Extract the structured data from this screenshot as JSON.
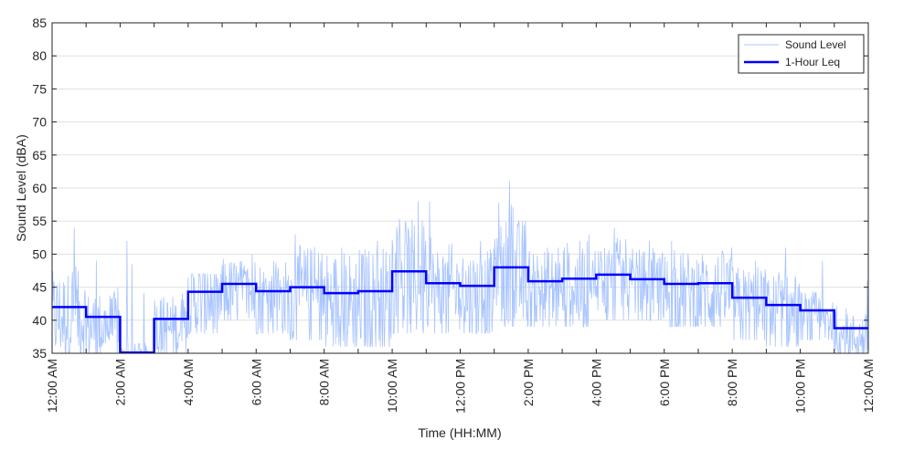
{
  "chart_data": {
    "type": "line",
    "title": "",
    "xlabel": "Time (HH:MM)",
    "ylabel": "Sound Level (dBA)",
    "ylim": [
      35,
      85
    ],
    "xlim_hours": [
      0,
      24
    ],
    "yticks": [
      35,
      40,
      45,
      50,
      55,
      60,
      65,
      70,
      75,
      80,
      85
    ],
    "xtick_labels": [
      "12:00 AM",
      "2:00 AM",
      "4:00 AM",
      "6:00 AM",
      "8:00 AM",
      "10:00 AM",
      "12:00 PM",
      "2:00 PM",
      "4:00 PM",
      "6:00 PM",
      "8:00 PM",
      "10:00 PM",
      "12:00 AM"
    ],
    "grid": "horizontal",
    "legend_position": "top-right",
    "series": [
      {
        "name": "Sound Level",
        "color": "#a8c4ff",
        "hourly_peak": [
          54,
          49,
          52,
          44,
          47,
          50,
          49,
          53,
          51,
          52,
          58,
          58,
          52,
          61,
          51,
          53,
          54,
          52,
          52,
          51,
          49,
          51,
          49,
          46
        ],
        "hourly_floor": [
          35,
          35,
          35,
          35,
          38,
          40,
          38,
          37,
          36,
          36,
          38,
          38,
          38,
          39,
          39,
          39,
          40,
          40,
          39,
          39,
          37,
          36,
          37,
          35
        ]
      },
      {
        "name": "1-Hour Leq",
        "color": "#0000ff",
        "hours": [
          0,
          1,
          2,
          3,
          4,
          5,
          6,
          7,
          8,
          9,
          10,
          11,
          12,
          13,
          14,
          15,
          16,
          17,
          18,
          19,
          20,
          21,
          22,
          23
        ],
        "values": [
          42.0,
          40.5,
          35.1,
          40.2,
          44.3,
          45.5,
          44.4,
          45.0,
          44.1,
          44.4,
          47.4,
          45.6,
          45.2,
          48.0,
          45.9,
          46.3,
          46.9,
          46.2,
          45.5,
          45.6,
          43.4,
          42.3,
          41.5,
          38.8
        ]
      }
    ]
  }
}
